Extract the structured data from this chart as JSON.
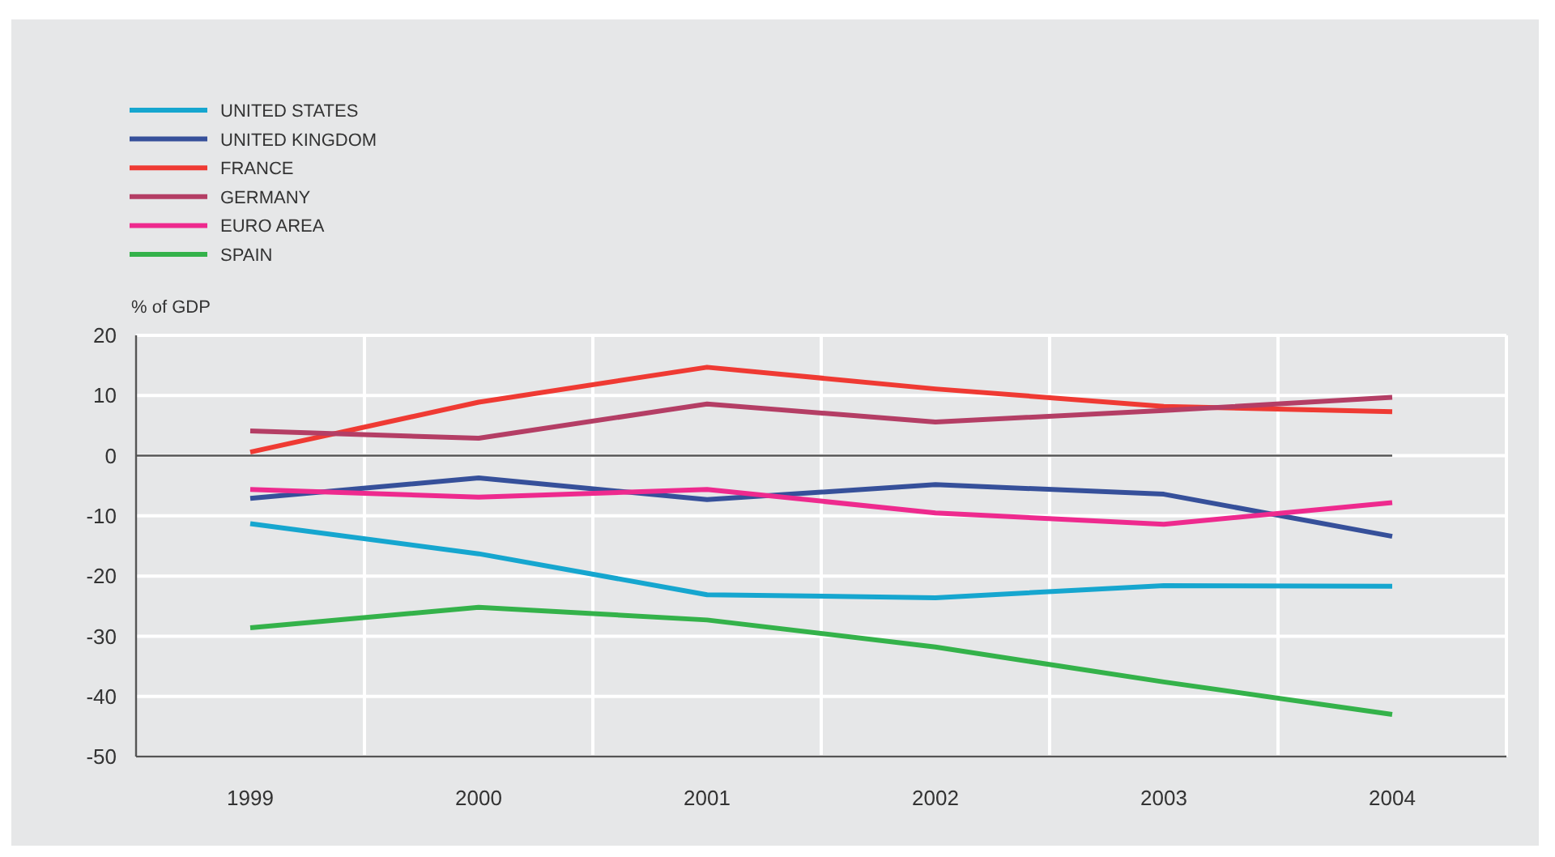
{
  "chart_data": {
    "type": "line",
    "ylabel": "% of GDP",
    "categories": [
      "1999",
      "2000",
      "2001",
      "2002",
      "2003",
      "2004"
    ],
    "series": [
      {
        "name": "UNITED STATES",
        "color": "#16a6cf",
        "values": [
          -11.3,
          -16.3,
          -23.1,
          -23.6,
          -21.6,
          -21.7
        ]
      },
      {
        "name": "UNITED KINGDOM",
        "color": "#36509a",
        "values": [
          -7.1,
          -3.7,
          -7.3,
          -4.8,
          -6.4,
          -13.4
        ]
      },
      {
        "name": "FRANCE",
        "color": "#ef3a33",
        "values": [
          0.6,
          8.9,
          14.7,
          11.1,
          8.2,
          7.3
        ]
      },
      {
        "name": "GERMANY",
        "color": "#b43e65",
        "values": [
          4.1,
          2.9,
          8.6,
          5.6,
          7.5,
          9.7
        ]
      },
      {
        "name": "EURO AREA",
        "color": "#ee2a8e",
        "values": [
          -5.6,
          -6.9,
          -5.6,
          -9.5,
          -11.4,
          -7.8
        ]
      },
      {
        "name": "SPAIN",
        "color": "#34b24a",
        "values": [
          -28.6,
          -25.2,
          -27.3,
          -31.8,
          -37.6,
          -43.0
        ]
      }
    ],
    "ylim": [
      -50,
      20
    ],
    "yticks": [
      -50,
      -40,
      -30,
      -20,
      -10,
      0,
      10,
      20
    ],
    "grid": true,
    "legend": "top left",
    "marker": "none",
    "line_style": "solid",
    "ref_lines": [
      {
        "axis": "y",
        "value": 0,
        "color": "#555555"
      }
    ]
  }
}
